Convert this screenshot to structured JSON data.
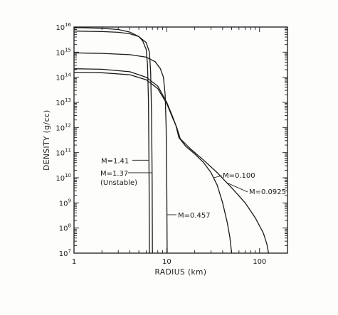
{
  "chart_data": {
    "type": "line",
    "title": "",
    "xlabel": "RADIUS (km)",
    "ylabel": "DENSITY (g/cc)",
    "xscale": "log",
    "yscale": "log",
    "xlim": [
      1,
      200
    ],
    "ylim": [
      10000000.0,
      1e+16
    ],
    "grid": false,
    "x_tick_labels": [
      {
        "value": 1,
        "label": "1"
      },
      {
        "value": 10,
        "label": "10"
      },
      {
        "value": 100,
        "label": "100"
      }
    ],
    "y_tick_labels": [
      {
        "exp": 7,
        "base": "10",
        "sup": "7"
      },
      {
        "exp": 8,
        "base": "10",
        "sup": "8"
      },
      {
        "exp": 9,
        "base": "10",
        "sup": "9"
      },
      {
        "exp": 10,
        "base": "10",
        "sup": "10"
      },
      {
        "exp": 11,
        "base": "10",
        "sup": "11"
      },
      {
        "exp": 12,
        "base": "10",
        "sup": "12"
      },
      {
        "exp": 13,
        "base": "10",
        "sup": "13"
      },
      {
        "exp": 14,
        "base": "10",
        "sup": "14"
      },
      {
        "exp": 15,
        "base": "10",
        "sup": "15"
      },
      {
        "exp": 16,
        "base": "10",
        "sup": "16"
      }
    ],
    "series": [
      {
        "name": "M=1.41",
        "x": [
          1,
          2,
          3,
          4,
          5,
          5.5,
          6,
          6.2,
          6.35,
          6.45,
          6.5
        ],
        "log10_y": [
          15.98,
          15.95,
          15.9,
          15.8,
          15.62,
          15.45,
          15.1,
          14.5,
          13.0,
          10.0,
          7.0
        ]
      },
      {
        "name": "M=1.37 (Unstable)",
        "x": [
          1,
          2,
          3,
          4,
          5,
          6,
          6.5,
          6.7,
          6.85,
          6.95,
          7.0
        ],
        "log10_y": [
          15.84,
          15.82,
          15.79,
          15.73,
          15.62,
          15.38,
          15.0,
          14.2,
          12.5,
          10.0,
          7.0
        ]
      },
      {
        "name": "M=0.457",
        "x": [
          1,
          2,
          4,
          6,
          7.5,
          8.5,
          9.2,
          9.6,
          9.85,
          10.0,
          10.1
        ],
        "log10_y": [
          14.97,
          14.95,
          14.9,
          14.8,
          14.62,
          14.35,
          14.0,
          13.3,
          12.0,
          9.5,
          7.0
        ]
      },
      {
        "name": "M=0.100",
        "x": [
          1,
          2,
          4,
          6,
          8,
          10,
          11.5,
          12.5,
          13.5,
          16,
          20,
          25,
          30,
          35,
          40,
          45,
          48,
          50
        ],
        "log10_y": [
          14.34,
          14.32,
          14.22,
          14.0,
          13.65,
          13.0,
          12.45,
          12.1,
          11.6,
          11.25,
          10.95,
          10.6,
          10.2,
          9.7,
          9.0,
          8.2,
          7.6,
          7.0
        ]
      },
      {
        "name": "M=0.0925",
        "x": [
          1,
          2,
          4,
          6,
          8,
          10,
          11.5,
          12.8,
          14,
          18,
          25,
          35,
          50,
          70,
          90,
          110,
          120,
          125
        ],
        "log10_y": [
          14.2,
          14.18,
          14.1,
          13.9,
          13.55,
          12.95,
          12.4,
          12.0,
          11.55,
          11.15,
          10.7,
          10.2,
          9.6,
          9.0,
          8.4,
          7.8,
          7.35,
          7.0
        ]
      }
    ],
    "annotations": [
      {
        "text": "M=1.41",
        "series": "M=1.41",
        "anchor_log10_y": 10.7
      },
      {
        "text": "M=1.37",
        "series": "M=1.37 (Unstable)",
        "anchor_log10_y": 10.2
      },
      {
        "text": "(Unstable)",
        "series": "M=1.37 (Unstable)"
      },
      {
        "text": "M=0.457",
        "series": "M=0.457",
        "anchor_log10_y": 7.0
      },
      {
        "text": "M=0.100",
        "series": "M=0.100",
        "anchor_log10_y": 10.0
      },
      {
        "text": "M=0.0925",
        "series": "M=0.0925",
        "anchor_log10_y": 9.8
      }
    ]
  }
}
